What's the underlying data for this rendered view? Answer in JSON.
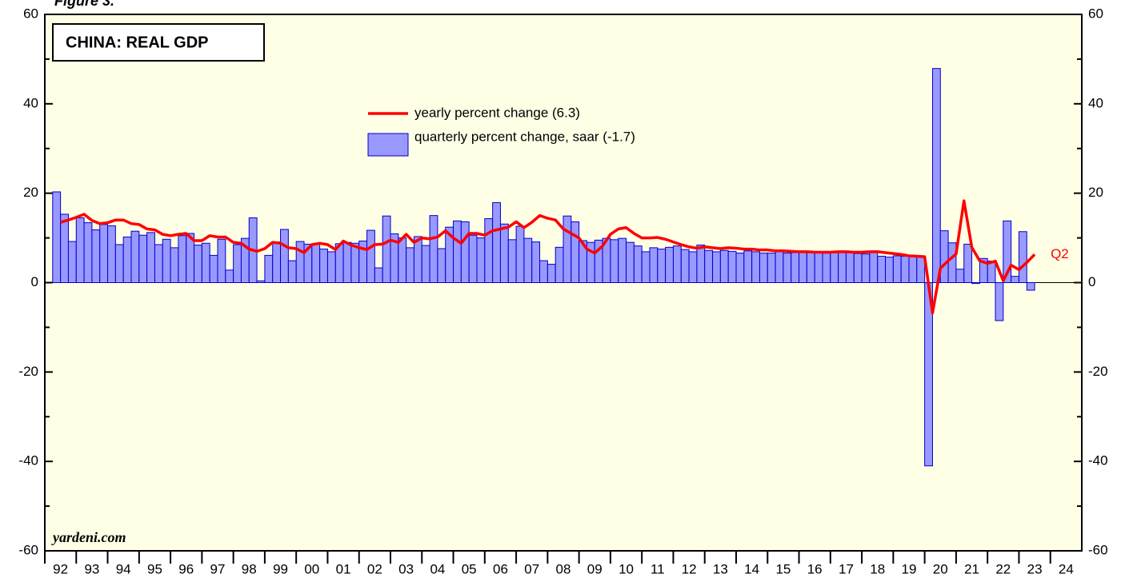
{
  "chart_data": {
    "type": "bar_line",
    "figure_label": "Figure 3.",
    "title": "CHINA: REAL GDP",
    "source": "yardeni.com",
    "annotation": "Q2",
    "xlim": [
      1992,
      2025
    ],
    "xticks": [
      {
        "value": 1992,
        "label": "92"
      },
      {
        "value": 1993,
        "label": "93"
      },
      {
        "value": 1994,
        "label": "94"
      },
      {
        "value": 1995,
        "label": "95"
      },
      {
        "value": 1996,
        "label": "96"
      },
      {
        "value": 1997,
        "label": "97"
      },
      {
        "value": 1998,
        "label": "98"
      },
      {
        "value": 1999,
        "label": "99"
      },
      {
        "value": 2000,
        "label": "00"
      },
      {
        "value": 2001,
        "label": "01"
      },
      {
        "value": 2002,
        "label": "02"
      },
      {
        "value": 2003,
        "label": "03"
      },
      {
        "value": 2004,
        "label": "04"
      },
      {
        "value": 2005,
        "label": "05"
      },
      {
        "value": 2006,
        "label": "06"
      },
      {
        "value": 2007,
        "label": "07"
      },
      {
        "value": 2008,
        "label": "08"
      },
      {
        "value": 2009,
        "label": "09"
      },
      {
        "value": 2010,
        "label": "10"
      },
      {
        "value": 2011,
        "label": "11"
      },
      {
        "value": 2012,
        "label": "12"
      },
      {
        "value": 2013,
        "label": "13"
      },
      {
        "value": 2014,
        "label": "14"
      },
      {
        "value": 2015,
        "label": "15"
      },
      {
        "value": 2016,
        "label": "16"
      },
      {
        "value": 2017,
        "label": "17"
      },
      {
        "value": 2018,
        "label": "18"
      },
      {
        "value": 2019,
        "label": "19"
      },
      {
        "value": 2020,
        "label": "20"
      },
      {
        "value": 2021,
        "label": "21"
      },
      {
        "value": 2022,
        "label": "22"
      },
      {
        "value": 2023,
        "label": "23"
      },
      {
        "value": 2024,
        "label": "24"
      }
    ],
    "ylim": [
      -60,
      60
    ],
    "yticks": [
      -60,
      -40,
      -20,
      0,
      20,
      40,
      60
    ],
    "yticks_minor": [
      -50,
      -30,
      -10,
      10,
      30,
      50
    ],
    "x": [
      1992.5,
      1992.75,
      1993,
      1993.25,
      1993.5,
      1993.75,
      1994,
      1994.25,
      1994.5,
      1994.75,
      1995,
      1995.25,
      1995.5,
      1995.75,
      1996,
      1996.25,
      1996.5,
      1996.75,
      1997,
      1997.25,
      1997.5,
      1997.75,
      1998,
      1998.25,
      1998.5,
      1998.75,
      1999,
      1999.25,
      1999.5,
      1999.75,
      2000,
      2000.25,
      2000.5,
      2000.75,
      2001,
      2001.25,
      2001.5,
      2001.75,
      2002,
      2002.25,
      2002.5,
      2002.75,
      2003,
      2003.25,
      2003.5,
      2003.75,
      2004,
      2004.25,
      2004.5,
      2004.75,
      2005,
      2005.25,
      2005.5,
      2005.75,
      2006,
      2006.25,
      2006.5,
      2006.75,
      2007,
      2007.25,
      2007.5,
      2007.75,
      2008,
      2008.25,
      2008.5,
      2008.75,
      2009,
      2009.25,
      2009.5,
      2009.75,
      2010,
      2010.25,
      2010.5,
      2010.75,
      2011,
      2011.25,
      2011.5,
      2011.75,
      2012,
      2012.25,
      2012.5,
      2012.75,
      2013,
      2013.25,
      2013.5,
      2013.75,
      2014,
      2014.25,
      2014.5,
      2014.75,
      2015,
      2015.25,
      2015.5,
      2015.75,
      2016,
      2016.25,
      2016.5,
      2016.75,
      2017,
      2017.25,
      2017.5,
      2017.75,
      2018,
      2018.25,
      2018.5,
      2018.75,
      2019,
      2019.25,
      2019.5,
      2019.75,
      2020,
      2020.25,
      2020.5,
      2020.75,
      2021,
      2021.25,
      2021.5,
      2021.75,
      2022,
      2022.25,
      2022.5,
      2022.75,
      2023,
      2023.25,
      2023.5
    ],
    "series": [
      {
        "name": "quarterly percent change, saar (-1.7)",
        "kind": "bar",
        "color": "#9999ff",
        "edge": "#0000cc",
        "values": [
          20.3,
          15.3,
          9.2,
          14.5,
          13.4,
          11.8,
          13,
          12.7,
          8.5,
          10.2,
          11.5,
          10.6,
          11.2,
          8.5,
          9.7,
          7.8,
          10.5,
          11,
          8.4,
          8.8,
          6.1,
          9.7,
          2.8,
          8.5,
          9.9,
          14.5,
          0.4,
          6.1,
          9.1,
          11.9,
          4.9,
          9.2,
          8.6,
          8.7,
          7.5,
          6.9,
          8.7,
          9,
          8.8,
          9.3,
          11.7,
          3.3,
          14.9,
          10.9,
          10,
          7.8,
          10.3,
          8.3,
          15,
          7.6,
          12.4,
          13.8,
          13.6,
          10.6,
          10,
          14.3,
          17.9,
          13.1,
          9.6,
          12.6,
          9.9,
          9.1,
          4.9,
          4.1,
          7.9,
          14.9,
          13.6,
          9.4,
          9,
          9.5,
          9.9,
          9.6,
          9.9,
          9,
          8.2,
          6.9,
          7.8,
          7.5,
          7.9,
          8.2,
          7.4,
          6.9,
          8.4,
          7.2,
          6.9,
          7.2,
          7,
          6.6,
          7.1,
          6.9,
          6.6,
          6.6,
          6.9,
          6.6,
          6.7,
          6.8,
          6.8,
          6.7,
          6.6,
          6.9,
          6.7,
          6.8,
          6.5,
          6.4,
          6.7,
          5.9,
          5.7,
          6,
          5.9,
          5.8,
          5.8,
          -41,
          47.9,
          11.6,
          8.9,
          3,
          8.6,
          -0.2,
          5.4,
          4.8,
          -8.5,
          13.8,
          1.4,
          11.4,
          -1.7
        ]
      },
      {
        "name": "yearly percent change (6.3)",
        "kind": "line",
        "color": "#ff0000",
        "values": [
          13.5,
          14,
          14.6,
          15.3,
          13.9,
          13.2,
          13.4,
          14,
          14,
          13.2,
          13,
          12,
          11.8,
          10.8,
          10.5,
          10.8,
          11,
          9.4,
          9.4,
          10.5,
          10.2,
          10.2,
          9,
          8.8,
          7.5,
          7,
          7.6,
          9,
          8.8,
          7.8,
          7.6,
          6.7,
          8.5,
          8.8,
          8.5,
          7.4,
          9.3,
          8.4,
          7.8,
          7.4,
          8.5,
          8.6,
          9.5,
          9,
          10.8,
          9,
          10,
          9.8,
          10.2,
          11.6,
          10,
          8.8,
          11,
          11,
          10.6,
          11.6,
          12,
          12.4,
          13.6,
          12.3,
          13.5,
          15,
          14.4,
          14,
          12,
          11,
          10,
          7.5,
          6.6,
          8.2,
          10.8,
          12,
          12.3,
          11,
          10,
          10,
          10.1,
          9.7,
          9.1,
          8.5,
          8,
          7.7,
          8,
          7.8,
          7.6,
          7.8,
          7.7,
          7.5,
          7.5,
          7.3,
          7.3,
          7.1,
          7.1,
          7,
          6.9,
          6.9,
          6.8,
          6.8,
          6.8,
          6.9,
          6.9,
          6.8,
          6.8,
          6.9,
          6.9,
          6.7,
          6.5,
          6.3,
          6,
          5.9,
          5.8,
          -6.8,
          3.2,
          4.9,
          6.4,
          18.3,
          7.9,
          4.9,
          4.3,
          4.8,
          0.4,
          3.9,
          2.9,
          4.5,
          6.3
        ]
      }
    ]
  }
}
